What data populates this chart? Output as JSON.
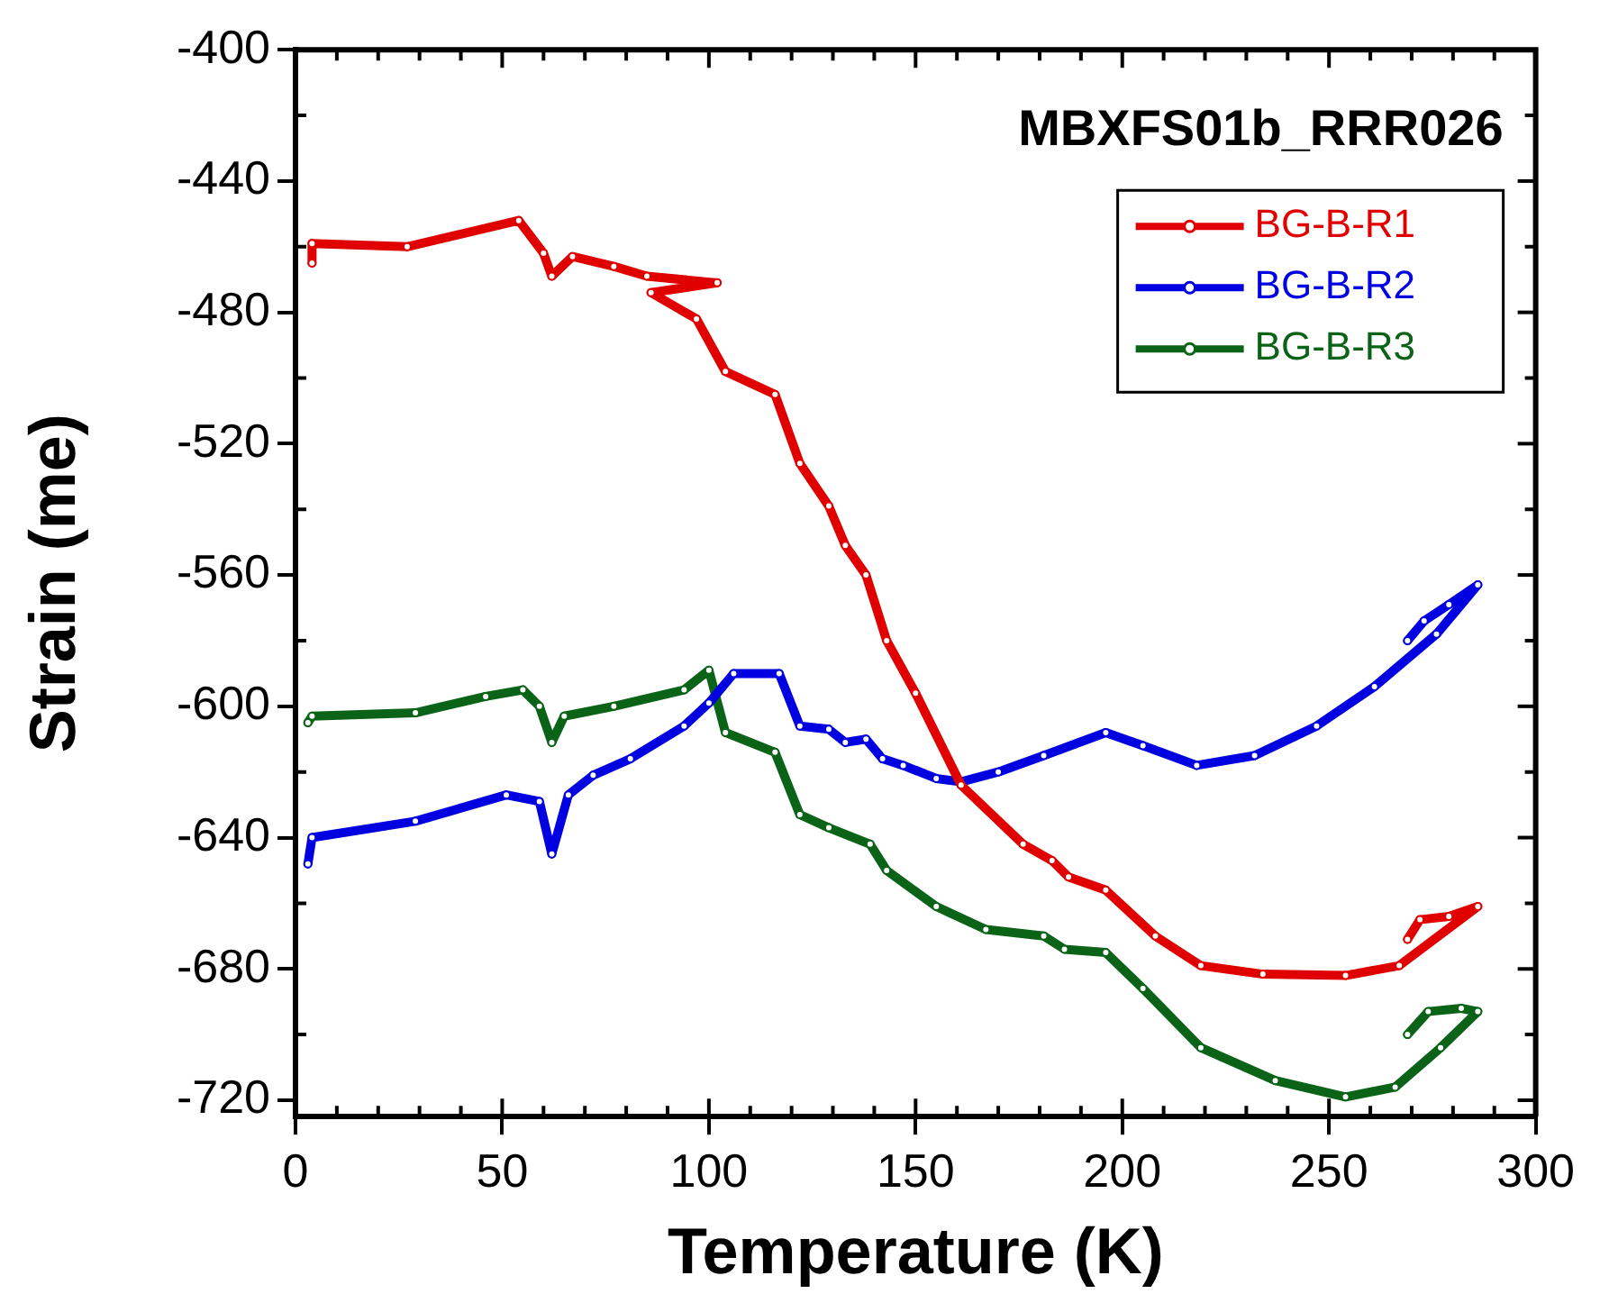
{
  "chart_data": {
    "type": "line",
    "xlabel": "Temperature (K)",
    "ylabel": "Strain (me)",
    "annotations": [
      "MBXFS01b_RRR026"
    ],
    "xlim": [
      0,
      300
    ],
    "xticks": [
      0,
      50,
      100,
      150,
      200,
      250,
      300
    ],
    "ylim": [
      -725,
      -400
    ],
    "yticks": [
      -400,
      -440,
      -480,
      -520,
      -560,
      -600,
      -640,
      -680,
      -720
    ],
    "grid": false,
    "legend": "top right",
    "marker": "circle",
    "line_style": "solid",
    "series": [
      {
        "name": "BG-B-R1",
        "color": "#e00000",
        "x": [
          269,
          272,
          279,
          286,
          267,
          254,
          234,
          219,
          208,
          196,
          187,
          183,
          176,
          161,
          150,
          143,
          138,
          133,
          129,
          122,
          116,
          104,
          97,
          86,
          102,
          85,
          77,
          67,
          62,
          60,
          54,
          27,
          4,
          4
        ],
        "values": [
          -671,
          -665,
          -664,
          -661,
          -679,
          -682,
          -681.6,
          -679,
          -670,
          -656,
          -652,
          -647,
          -642,
          -624,
          -596,
          -580,
          -560,
          -551,
          -539,
          -526,
          -505,
          -498,
          -482,
          -474,
          -471,
          -469,
          -466,
          -463,
          -469,
          -462,
          -452,
          -460,
          -459,
          -465
        ]
      },
      {
        "name": "BG-B-R2",
        "color": "#0000e0",
        "x": [
          269,
          273,
          279,
          286,
          276,
          261,
          247,
          232,
          218,
          205,
          196,
          181,
          170,
          161,
          155,
          147,
          142,
          138,
          133,
          129,
          122,
          117,
          106,
          100,
          94,
          81,
          72,
          66,
          62,
          59,
          51,
          29,
          4,
          3
        ],
        "values": [
          -580,
          -574,
          -569,
          -563,
          -578,
          -594,
          -606,
          -615,
          -618,
          -612,
          -608,
          -615,
          -620,
          -623,
          -622,
          -618,
          -616,
          -610,
          -611,
          -607,
          -606,
          -590,
          -590,
          -599,
          -606,
          -616,
          -621,
          -627,
          -645,
          -629,
          -627,
          -635,
          -640,
          -648
        ]
      },
      {
        "name": "BG-B-R3",
        "color": "#0b6318",
        "x": [
          269,
          274,
          282,
          286,
          277,
          266,
          254,
          237,
          219,
          205,
          196,
          186,
          181,
          167,
          155,
          143,
          139,
          129,
          122,
          116,
          104,
          100,
          94,
          77,
          65,
          62,
          59,
          55,
          46,
          29,
          4,
          3
        ],
        "values": [
          -700,
          -693,
          -692,
          -693,
          -704,
          -716,
          -719,
          -714,
          -704,
          -686,
          -675,
          -674,
          -670,
          -668,
          -661,
          -650,
          -642,
          -637,
          -633,
          -614,
          -608,
          -589,
          -595,
          -600,
          -603,
          -611,
          -600,
          -595,
          -597,
          -602,
          -603,
          -605
        ]
      }
    ]
  }
}
